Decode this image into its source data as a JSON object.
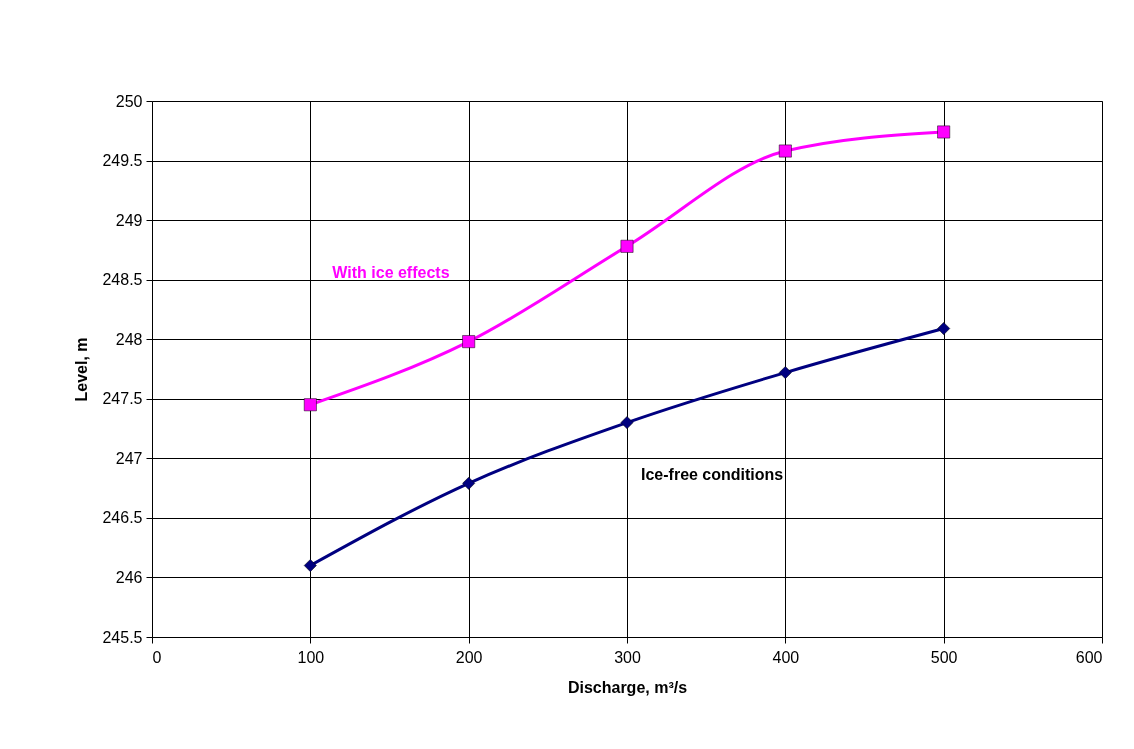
{
  "chart_data": {
    "type": "line",
    "xlabel": "Discharge, m³/s",
    "ylabel": "Level, m",
    "x": [
      100,
      200,
      300,
      400,
      500
    ],
    "series": [
      {
        "name": "With ice effects",
        "color": "#ff00ff",
        "marker": "square",
        "values": [
          247.45,
          247.98,
          248.78,
          249.58,
          249.74
        ]
      },
      {
        "name": "Ice-free conditions",
        "color": "#000080",
        "marker": "diamond",
        "values": [
          246.1,
          246.79,
          247.3,
          247.72,
          248.09
        ]
      }
    ],
    "xlim": [
      0,
      600
    ],
    "xticks": [
      0,
      100,
      200,
      300,
      400,
      500,
      600
    ],
    "ylim": [
      245.5,
      250
    ],
    "yticks": [
      245.5,
      246,
      246.5,
      247,
      247.5,
      248,
      248.5,
      249,
      249.5,
      250
    ],
    "grid": true
  }
}
